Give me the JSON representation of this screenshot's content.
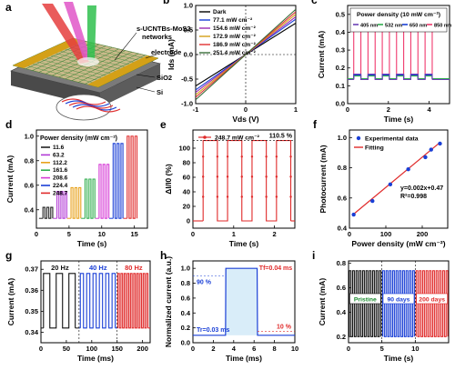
{
  "chart_data": [
    {
      "panel": "a",
      "type": "schematic",
      "labels": [
        "s-UCNTBs-MoS2 networks",
        "electrode",
        "SiO2",
        "Si"
      ]
    },
    {
      "panel": "b",
      "type": "line",
      "xlabel": "Vds (V)",
      "ylabel": "Ids (mA)",
      "xlim": [
        -1,
        1
      ],
      "ylim": [
        -1.0,
        1.0
      ],
      "xticks": [
        -1,
        0,
        1
      ],
      "yticks": [
        -1.0,
        -0.5,
        0.0,
        0.5,
        1.0
      ],
      "legend": "top-left",
      "series": [
        {
          "name": "Dark",
          "color": "#000000",
          "slope": 0.64
        },
        {
          "name": "77.1 mW cm⁻²",
          "color": "#1a3fd6",
          "slope": 0.72
        },
        {
          "name": "154.6 mW cm⁻²",
          "color": "#9b2ab0",
          "slope": 0.77
        },
        {
          "name": "172.9 mW cm⁻²",
          "color": "#d4a017",
          "slope": 0.82
        },
        {
          "name": "186.9 mW cm⁻²",
          "color": "#e03030",
          "slope": 0.87
        },
        {
          "name": "251.4 mW cm⁻²",
          "color": "#3a6e3a",
          "slope": 0.92
        }
      ]
    },
    {
      "panel": "c",
      "type": "line",
      "title": "Power density (10 mW cm⁻²)",
      "xlabel": "Time (s)",
      "ylabel": "Current (mA)",
      "xlim": [
        0,
        5
      ],
      "ylim": [
        0.0,
        0.55
      ],
      "xticks": [
        0,
        2,
        4
      ],
      "yticks": [
        0.0,
        0.1,
        0.2,
        0.3,
        0.4,
        0.5
      ],
      "series": [
        {
          "name": "405 nm",
          "color": "#6a3fb5",
          "on": 0.165,
          "off": 0.135
        },
        {
          "name": "532 nm",
          "color": "#2fae4e",
          "on": 0.155,
          "off": 0.14
        },
        {
          "name": "650 nm",
          "color": "#1a3fd6",
          "on": 0.16,
          "off": 0.14
        },
        {
          "name": "850 nm",
          "color": "#f03a6e",
          "on": 0.49,
          "off": 0.135
        }
      ]
    },
    {
      "panel": "d",
      "type": "line",
      "title": "Power density (mW cm⁻²)",
      "xlabel": "Time (s)",
      "ylabel": "Current (mA)",
      "xlim": [
        0,
        17
      ],
      "ylim": [
        0.25,
        1.05
      ],
      "xticks": [
        0,
        5,
        10,
        15
      ],
      "yticks": [
        0.4,
        0.6,
        0.8,
        1.0
      ],
      "off_level": 0.33,
      "series": [
        {
          "name": "11.6",
          "color": "#222222",
          "on": 0.42
        },
        {
          "name": "63.2",
          "color": "#b23ad6",
          "on": 0.55
        },
        {
          "name": "112.2",
          "color": "#e8a21c",
          "on": 0.58
        },
        {
          "name": "161.6",
          "color": "#2fae4e",
          "on": 0.65
        },
        {
          "name": "208.6",
          "color": "#d63ad6",
          "on": 0.77
        },
        {
          "name": "224.4",
          "color": "#1a3fd6",
          "on": 0.94
        },
        {
          "name": "248.7",
          "color": "#e02a2a",
          "on": 1.0
        }
      ]
    },
    {
      "panel": "e",
      "type": "line",
      "xlabel": "Time (s)",
      "ylabel": "ΔI/I0 (%)",
      "xlim": [
        0,
        2.5
      ],
      "ylim": [
        -10,
        125
      ],
      "xticks": [
        0,
        1,
        2
      ],
      "yticks": [
        0,
        20,
        40,
        60,
        80,
        100
      ],
      "annotation": "110.5 %",
      "series": [
        {
          "name": "248.7 mW cm⁻²",
          "color": "#e02a2a",
          "on": 110.5,
          "off": 0
        }
      ]
    },
    {
      "panel": "f",
      "type": "scatter",
      "xlabel": "Power density (mW cm⁻²)",
      "ylabel": "Photocurrent (mA)",
      "xlim": [
        0,
        270
      ],
      "ylim": [
        0.4,
        1.05
      ],
      "xticks": [
        0,
        100,
        200
      ],
      "yticks": [
        0.4,
        0.6,
        0.8,
        1.0
      ],
      "legend": "top-left",
      "fit_text": "y=0.002x+0.47",
      "r2_text": "R²=0.998",
      "series": [
        {
          "name": "Experimental data",
          "color": "#1a3fd6",
          "x": [
            11.6,
            63.2,
            112.2,
            161.6,
            208.6,
            224.4,
            248.7
          ],
          "y": [
            0.49,
            0.58,
            0.69,
            0.79,
            0.87,
            0.92,
            0.96
          ]
        },
        {
          "name": "Fitting",
          "color": "#e02a2a",
          "slope": 0.002,
          "intercept": 0.47
        }
      ]
    },
    {
      "panel": "g",
      "type": "line",
      "xlabel": "Time (ms)",
      "ylabel": "Current (mA)",
      "xlim": [
        0,
        215
      ],
      "ylim": [
        0.335,
        0.374
      ],
      "xticks": [
        0,
        50,
        100,
        150,
        200
      ],
      "yticks": [
        0.34,
        0.35,
        0.36,
        0.37
      ],
      "dividers": [
        75,
        150
      ],
      "on_level": 0.368,
      "off_level": 0.342,
      "series": [
        {
          "name": "20 Hz",
          "color": "#111111",
          "x_range": [
            0,
            75
          ],
          "period": 25
        },
        {
          "name": "40 Hz",
          "color": "#1a3fd6",
          "x_range": [
            75,
            150
          ],
          "period": 12.5
        },
        {
          "name": "80 Hz",
          "color": "#e02a2a",
          "x_range": [
            150,
            215
          ],
          "period": 6.25
        }
      ]
    },
    {
      "panel": "h",
      "type": "line",
      "xlabel": "Time (ms)",
      "ylabel": "Normalized current (a.u.)",
      "xlim": [
        0,
        10
      ],
      "ylim": [
        0.0,
        1.1
      ],
      "xticks": [
        0,
        2,
        4,
        6,
        8,
        10
      ],
      "yticks": [
        0.0,
        0.2,
        0.4,
        0.6,
        0.8,
        1.0
      ],
      "rise_label": "Tr=0.03 ms",
      "fall_label": "Tf=0.04 ms",
      "level_90": "90 %",
      "level_10": "10 %",
      "series": [
        {
          "name": "pulse",
          "color": "#1a3fd6",
          "x": [
            0,
            3.2,
            3.23,
            6.3,
            6.34,
            10
          ],
          "y": [
            0.1,
            0.1,
            1.0,
            1.0,
            0.1,
            0.1
          ]
        }
      ]
    },
    {
      "panel": "i",
      "type": "line",
      "xlabel": "Time (s)",
      "ylabel": "Current (mA)",
      "xlim": [
        0,
        15
      ],
      "ylim": [
        0.15,
        0.82
      ],
      "xticks": [
        0,
        5,
        10
      ],
      "yticks": [
        0.2,
        0.4,
        0.6,
        0.8
      ],
      "dividers": [
        5,
        10
      ],
      "on_level": 0.74,
      "off_level": 0.2,
      "series": [
        {
          "name": "Pristine",
          "color": "#111111",
          "x_range": [
            0,
            5
          ]
        },
        {
          "name": "90 days",
          "color": "#1a3fd6",
          "x_range": [
            5,
            10
          ]
        },
        {
          "name": "200 days",
          "color": "#e02a2a",
          "x_range": [
            10,
            15
          ]
        }
      ]
    }
  ]
}
